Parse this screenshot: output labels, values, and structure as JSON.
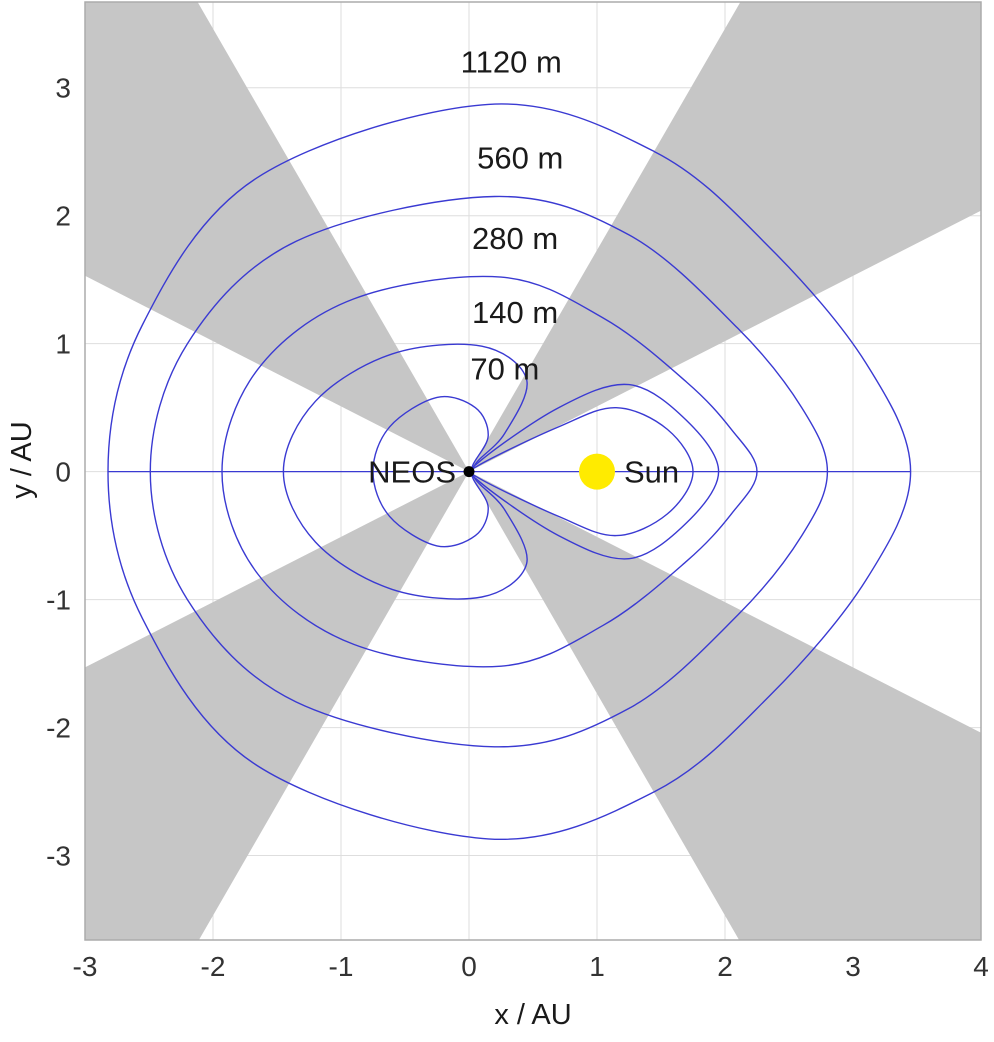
{
  "chart_data": {
    "type": "contour",
    "xlabel": "x / AU",
    "ylabel": "y / AU",
    "axes": {
      "xmin": -3,
      "xmax": 4,
      "ymin": -3.66,
      "ymax": 3.67
    },
    "x_ticks": [
      -3,
      -2,
      -1,
      0,
      1,
      2,
      3,
      4
    ],
    "y_ticks": [
      -3,
      -2,
      -1,
      0,
      1,
      2,
      3
    ],
    "grid": true,
    "legend": "none",
    "colors": {
      "contour": "#3a3ad2",
      "exclusion_zone": "#c6c6c6",
      "grid": "#dedede",
      "plot_border": "#ababab",
      "sun": "#ffeb00",
      "neos": "#000000",
      "text": "#1a1a1a",
      "tick_text": "#333333"
    },
    "points": [
      {
        "label": "NEOS",
        "x": 0,
        "y": 0,
        "marker": "dot",
        "label_side": "left"
      },
      {
        "label": "Sun",
        "x": 1,
        "y": 0,
        "marker": "sun",
        "label_side": "right"
      }
    ],
    "axis_pinch_line": {
      "y": 0,
      "x_from": -2.82,
      "x_to": 3.45
    },
    "contours": [
      {
        "label": "70 m",
        "label_pos": [
          0.28,
          0.72
        ],
        "components": [
          {
            "upper": [
              [
                -0.75,
                0
              ],
              [
                -0.62,
                0.35
              ],
              [
                -0.25,
                0.58
              ],
              [
                0.05,
                0.5
              ],
              [
                0.15,
                0.28
              ],
              [
                0.03,
                0.05
              ]
            ]
          },
          {
            "upper": [
              [
                0.06,
                0.04
              ],
              [
                0.7,
                0.35
              ],
              [
                1.15,
                0.5
              ],
              [
                1.55,
                0.33
              ],
              [
                1.75,
                0
              ]
            ]
          }
        ]
      },
      {
        "label": "140 m",
        "label_pos": [
          0.36,
          1.16
        ],
        "components": [
          {
            "upper": [
              [
                -1.45,
                0
              ],
              [
                -1.2,
                0.55
              ],
              [
                -0.6,
                0.92
              ],
              [
                0.1,
                0.98
              ],
              [
                0.45,
                0.72
              ],
              [
                0.28,
                0.3
              ],
              [
                0.05,
                0.06
              ]
            ]
          },
          {
            "upper": [
              [
                0.06,
                0.06
              ],
              [
                0.7,
                0.5
              ],
              [
                1.25,
                0.68
              ],
              [
                1.7,
                0.4
              ],
              [
                1.95,
                0
              ]
            ]
          }
        ]
      },
      {
        "label": "280 m",
        "label_pos": [
          0.36,
          1.74
        ],
        "components": [
          {
            "upper": [
              [
                -1.93,
                0
              ],
              [
                -1.65,
                0.8
              ],
              [
                -0.9,
                1.35
              ],
              [
                0.25,
                1.52
              ],
              [
                1.05,
                1.2
              ],
              [
                1.7,
                0.7
              ],
              [
                2.05,
                0.33
              ],
              [
                2.25,
                0
              ]
            ]
          }
        ]
      },
      {
        "label": "560 m",
        "label_pos": [
          0.4,
          2.37
        ],
        "components": [
          {
            "upper": [
              [
                -2.49,
                0
              ],
              [
                -2.2,
                1.0
              ],
              [
                -1.35,
                1.8
              ],
              [
                0.2,
                2.15
              ],
              [
                1.25,
                1.85
              ],
              [
                2.1,
                1.12
              ],
              [
                2.6,
                0.5
              ],
              [
                2.8,
                0
              ]
            ]
          }
        ]
      },
      {
        "label": "1120 m",
        "label_pos": [
          0.33,
          3.12
        ],
        "components": [
          {
            "upper": [
              [
                -2.82,
                0
              ],
              [
                -2.55,
                1.15
              ],
              [
                -1.65,
                2.3
              ],
              [
                0.15,
                2.87
              ],
              [
                1.45,
                2.5
              ],
              [
                2.35,
                1.75
              ],
              [
                3.1,
                0.85
              ],
              [
                3.45,
                0
              ]
            ]
          }
        ]
      }
    ],
    "exclusion_wedges": [
      {
        "name": "top-left",
        "vertices": [
          [
            0,
            0
          ],
          [
            -2.12,
            3.67
          ],
          [
            -3,
            3.67
          ],
          [
            -3,
            1.53
          ]
        ]
      },
      {
        "name": "top-right",
        "vertices": [
          [
            0,
            0
          ],
          [
            2.12,
            3.67
          ],
          [
            4,
            3.67
          ],
          [
            4,
            2.04
          ]
        ]
      },
      {
        "name": "bottom-left",
        "vertices": [
          [
            0,
            0
          ],
          [
            -3,
            -1.53
          ],
          [
            -3,
            -3.66
          ],
          [
            -2.11,
            -3.66
          ]
        ]
      },
      {
        "name": "bottom-right",
        "vertices": [
          [
            0,
            0
          ],
          [
            2.11,
            -3.66
          ],
          [
            4,
            -3.66
          ],
          [
            4,
            -2.04
          ]
        ]
      }
    ]
  }
}
